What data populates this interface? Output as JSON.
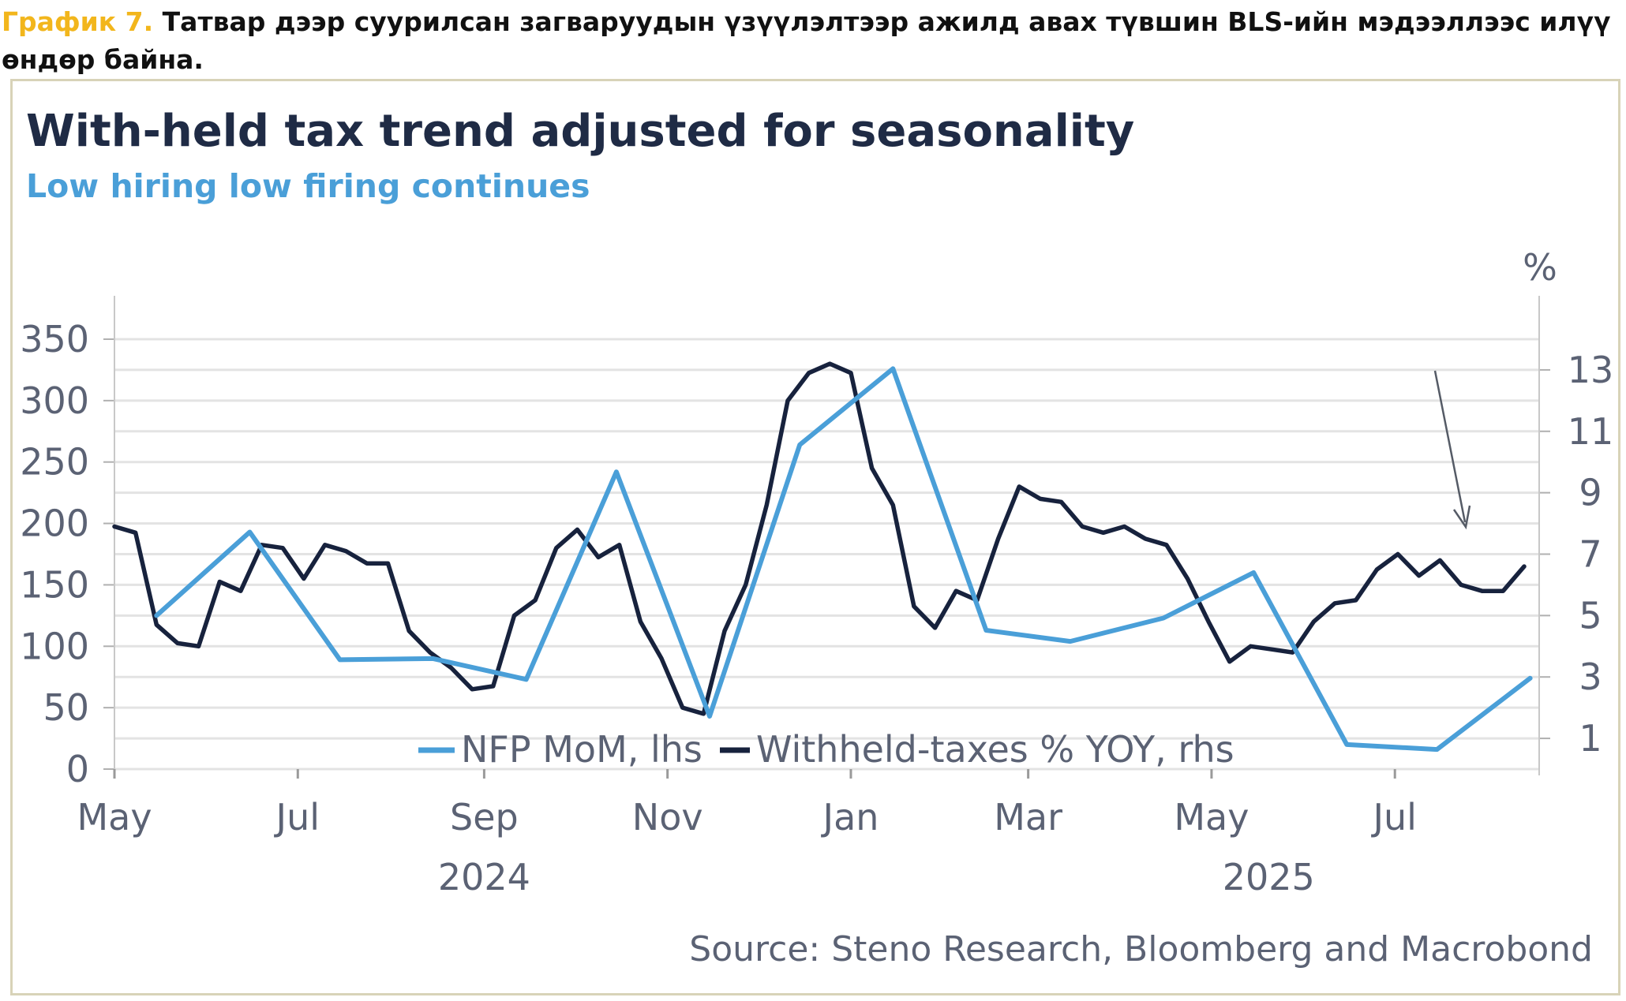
{
  "caption": {
    "label": "График 7.",
    "text": " Татвар дээр суурилсан загваруудын үзүүлэлтээр ажилд авах түвшин BLS-ийн мэдээллээс илүү өндөр байна."
  },
  "colors": {
    "caption_label": "#f2b61c",
    "title": "#1f2b45",
    "subtitle": "#4a9fd8",
    "nfp": "#4a9fd8",
    "withheld": "#17223d",
    "grid": "#e3e3e3",
    "frame": "#d8d3b8"
  },
  "chart_data": {
    "type": "line",
    "title": "With-held tax trend adjusted for seasonality",
    "subtitle": "Low hiring low firing continues",
    "y_left": {
      "ylim": [
        0,
        350
      ],
      "ticks": [
        "0",
        "50",
        "100",
        "150",
        "200",
        "250",
        "300",
        "350"
      ]
    },
    "y_right": {
      "label": "%",
      "ylim": [
        0,
        14
      ],
      "ticks": [
        "1",
        "3",
        "5",
        "7",
        "9",
        "11",
        "13"
      ]
    },
    "x_axis": {
      "ticks": [
        "May",
        "Jul",
        "Sep",
        "Nov",
        "Jan",
        "Mar",
        "May",
        "Jul"
      ],
      "years": [
        "2024",
        "2025"
      ]
    },
    "grid": true,
    "legend_position": "bottom-center",
    "series": [
      {
        "name": "NFP MoM, lhs",
        "axis": "left",
        "x": [
          "2024-05",
          "2024-06",
          "2024-07",
          "2024-08",
          "2024-09",
          "2024-10",
          "2024-11",
          "2024-12",
          "2025-01",
          "2025-02",
          "2025-03",
          "2025-04",
          "2025-05",
          "2025-06",
          "2025-07",
          "2025-08"
        ],
        "values": [
          125,
          193,
          89,
          90,
          73,
          242,
          43,
          264,
          326,
          113,
          104,
          123,
          160,
          20,
          16,
          74
        ]
      },
      {
        "name": "Withheld-taxes % YOY, rhs",
        "axis": "right",
        "x": [
          "2024-05-01",
          "2024-05-08",
          "2024-05-15",
          "2024-05-22",
          "2024-05-29",
          "2024-06-05",
          "2024-06-12",
          "2024-06-19",
          "2024-06-26",
          "2024-07-03",
          "2024-07-10",
          "2024-07-17",
          "2024-07-24",
          "2024-07-31",
          "2024-08-07",
          "2024-08-14",
          "2024-08-21",
          "2024-08-28",
          "2024-09-04",
          "2024-09-11",
          "2024-09-18",
          "2024-09-25",
          "2024-10-02",
          "2024-10-09",
          "2024-10-16",
          "2024-10-23",
          "2024-10-30",
          "2024-11-06",
          "2024-11-13",
          "2024-11-20",
          "2024-11-27",
          "2024-12-04",
          "2024-12-11",
          "2024-12-18",
          "2024-12-25",
          "2025-01-01",
          "2025-01-08",
          "2025-01-15",
          "2025-01-22",
          "2025-01-29",
          "2025-02-05",
          "2025-02-12",
          "2025-02-19",
          "2025-02-26",
          "2025-03-05",
          "2025-03-12",
          "2025-03-19",
          "2025-03-26",
          "2025-04-02",
          "2025-04-09",
          "2025-04-16",
          "2025-04-23",
          "2025-04-30",
          "2025-05-07",
          "2025-05-14",
          "2025-05-21",
          "2025-05-28",
          "2025-06-04",
          "2025-06-11",
          "2025-06-18",
          "2025-06-25",
          "2025-07-02",
          "2025-07-09",
          "2025-07-16",
          "2025-07-23",
          "2025-07-30",
          "2025-08-06",
          "2025-08-13"
        ],
        "values": [
          7.9,
          7.7,
          4.7,
          4.1,
          4.0,
          6.1,
          5.8,
          7.3,
          7.2,
          6.2,
          7.3,
          7.1,
          6.7,
          6.7,
          4.5,
          3.8,
          3.3,
          2.6,
          2.7,
          5.0,
          5.5,
          7.2,
          7.8,
          6.9,
          7.3,
          4.8,
          3.6,
          2.0,
          1.8,
          4.5,
          6.0,
          8.6,
          12.0,
          12.9,
          13.2,
          12.9,
          9.8,
          8.6,
          5.3,
          4.6,
          5.8,
          5.5,
          7.5,
          9.2,
          8.8,
          8.7,
          7.9,
          7.7,
          7.9,
          7.5,
          7.3,
          6.2,
          4.8,
          3.5,
          4.0,
          3.9,
          3.8,
          4.8,
          5.4,
          5.5,
          6.5,
          7.0,
          6.3,
          6.8,
          6.0,
          5.8,
          5.8,
          6.6
        ]
      }
    ],
    "annotations": [
      "arrow pointing at latest Withheld-taxes reading"
    ],
    "source": "Source: Steno Research, Bloomberg and Macrobond"
  }
}
